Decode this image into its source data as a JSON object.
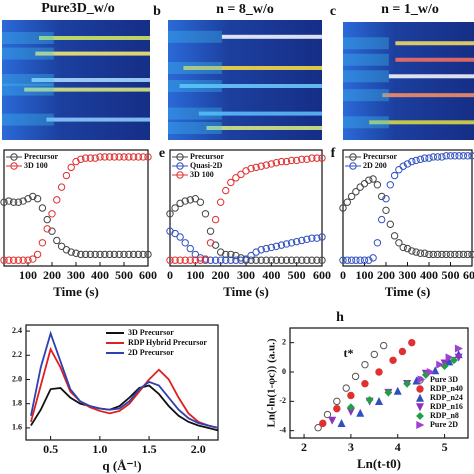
{
  "chart_data": [
    {
      "type": "image",
      "title": "Pure3D_w/o"
    },
    {
      "type": "image",
      "title": "n = 8_w/o",
      "panel_label": "b"
    },
    {
      "type": "image",
      "title": "n = 1_w/o",
      "panel_label": "c"
    },
    {
      "type": "scatter",
      "x_label": "Time (s)",
      "xlim": [
        0,
        600
      ],
      "xticks": [
        100,
        200,
        300,
        400,
        500,
        600
      ],
      "ylim": [
        0,
        1
      ],
      "x": [
        0,
        20,
        40,
        60,
        80,
        100,
        120,
        140,
        160,
        180,
        200,
        220,
        240,
        260,
        280,
        300,
        320,
        340,
        360,
        380,
        400,
        420,
        440,
        460,
        480,
        500,
        520,
        540,
        560,
        580,
        600
      ],
      "series": [
        {
          "name": "Precursor",
          "color": "#444444",
          "values": [
            0.55,
            0.56,
            0.55,
            0.55,
            0.56,
            0.58,
            0.6,
            0.58,
            0.5,
            0.4,
            0.3,
            0.22,
            0.17,
            0.14,
            0.12,
            0.11,
            0.1,
            0.1,
            0.1,
            0.1,
            0.1,
            0.1,
            0.1,
            0.1,
            0.1,
            0.1,
            0.1,
            0.1,
            0.1,
            0.1,
            0.1
          ]
        },
        {
          "name": "3D 100",
          "color": "#e03030",
          "values": [
            0.05,
            0.05,
            0.05,
            0.05,
            0.05,
            0.05,
            0.06,
            0.1,
            0.2,
            0.32,
            0.45,
            0.57,
            0.68,
            0.78,
            0.85,
            0.9,
            0.92,
            0.93,
            0.93,
            0.93,
            0.94,
            0.94,
            0.94,
            0.94,
            0.94,
            0.94,
            0.94,
            0.94,
            0.94,
            0.94,
            0.94
          ]
        }
      ]
    },
    {
      "type": "scatter",
      "panel_label": "e",
      "x_label": "Time (s)",
      "xlim": [
        0,
        600
      ],
      "xticks": [
        0,
        100,
        200,
        300,
        400,
        500,
        600
      ],
      "ylim": [
        0,
        1
      ],
      "x": [
        0,
        20,
        40,
        60,
        80,
        100,
        120,
        140,
        160,
        180,
        200,
        220,
        240,
        260,
        280,
        300,
        320,
        340,
        360,
        380,
        400,
        420,
        440,
        460,
        480,
        500,
        520,
        540,
        560,
        580,
        600
      ],
      "series": [
        {
          "name": "Precursor",
          "color": "#444444",
          "values": [
            0.45,
            0.5,
            0.54,
            0.56,
            0.57,
            0.58,
            0.55,
            0.45,
            0.3,
            0.18,
            0.12,
            0.1,
            0.1,
            0.09,
            0.07,
            0.05,
            0.05,
            0.05,
            0.05,
            0.05,
            0.05,
            0.05,
            0.05,
            0.05,
            0.05,
            0.05,
            0.05,
            0.05,
            0.05,
            0.05,
            0.05
          ]
        },
        {
          "name": "Quasi-2D",
          "color": "#3050c0",
          "values": [
            0.3,
            0.28,
            0.25,
            0.2,
            0.15,
            0.1,
            0.07,
            0.05,
            0.05,
            0.05,
            0.05,
            0.05,
            0.05,
            0.05,
            0.05,
            0.06,
            0.09,
            0.12,
            0.14,
            0.15,
            0.16,
            0.17,
            0.18,
            0.19,
            0.2,
            0.21,
            0.22,
            0.23,
            0.24,
            0.24,
            0.25
          ]
        },
        {
          "name": "3D 100",
          "color": "#e03030",
          "values": [
            0.05,
            0.05,
            0.05,
            0.05,
            0.05,
            0.05,
            0.05,
            0.06,
            0.2,
            0.4,
            0.55,
            0.65,
            0.72,
            0.76,
            0.79,
            0.82,
            0.84,
            0.85,
            0.86,
            0.87,
            0.88,
            0.89,
            0.9,
            0.9,
            0.91,
            0.91,
            0.92,
            0.92,
            0.93,
            0.93,
            0.93
          ]
        }
      ]
    },
    {
      "type": "scatter",
      "panel_label": "f",
      "x_label": "Time (s)",
      "xlim": [
        0,
        600
      ],
      "xticks": [
        0,
        100,
        200,
        300,
        400,
        500,
        600
      ],
      "ylim": [
        0,
        1
      ],
      "x": [
        0,
        20,
        40,
        60,
        80,
        100,
        120,
        140,
        160,
        180,
        200,
        220,
        240,
        260,
        280,
        300,
        320,
        340,
        360,
        380,
        400,
        420,
        440,
        460,
        480,
        500,
        520,
        540,
        560,
        580,
        600
      ],
      "series": [
        {
          "name": "Precursor",
          "color": "#444444",
          "values": [
            0.5,
            0.55,
            0.6,
            0.64,
            0.68,
            0.71,
            0.74,
            0.75,
            0.7,
            0.6,
            0.48,
            0.36,
            0.26,
            0.2,
            0.16,
            0.15,
            0.13,
            0.12,
            0.11,
            0.11,
            0.1,
            0.1,
            0.1,
            0.1,
            0.1,
            0.1,
            0.1,
            0.1,
            0.1,
            0.1,
            0.1
          ]
        },
        {
          "name": "2D 200",
          "color": "#3050c0",
          "values": [
            0.05,
            0.05,
            0.05,
            0.05,
            0.05,
            0.05,
            0.05,
            0.07,
            0.2,
            0.4,
            0.58,
            0.7,
            0.78,
            0.83,
            0.86,
            0.88,
            0.9,
            0.91,
            0.92,
            0.93,
            0.93,
            0.94,
            0.94,
            0.94,
            0.95,
            0.95,
            0.95,
            0.95,
            0.95,
            0.95,
            0.95
          ]
        }
      ]
    },
    {
      "type": "line",
      "x_label": "q (Å⁻¹)",
      "xlim": [
        0.25,
        2.2
      ],
      "xticks": [
        0.5,
        {
          "value": 1.0,
          "label": "1.0"
        },
        1.5,
        {
          "value": 2.0,
          "label": "2.0"
        }
      ],
      "ylim": [
        1.5,
        2.45
      ],
      "yticks": [
        1.6,
        1.8,
        {
          "value": 2.0,
          "label": "2.0"
        },
        2.2,
        2.4
      ],
      "x": [
        0.3,
        0.4,
        0.5,
        0.6,
        0.7,
        0.8,
        0.9,
        1.0,
        1.1,
        1.2,
        1.3,
        1.4,
        1.5,
        1.6,
        1.7,
        1.8,
        1.9,
        2.0,
        2.1,
        2.2
      ],
      "series": [
        {
          "name": "3D Precursor",
          "color": "#111111",
          "values": [
            1.62,
            1.75,
            1.92,
            1.93,
            1.85,
            1.8,
            1.78,
            1.76,
            1.75,
            1.78,
            1.85,
            1.93,
            1.95,
            1.88,
            1.78,
            1.7,
            1.65,
            1.62,
            1.6,
            1.58
          ]
        },
        {
          "name": "RDP Hybrid Precursor",
          "color": "#e02020",
          "values": [
            1.65,
            1.95,
            2.25,
            2.1,
            1.9,
            1.82,
            1.77,
            1.74,
            1.72,
            1.74,
            1.8,
            1.9,
            2.0,
            2.08,
            2.0,
            1.85,
            1.72,
            1.65,
            1.62,
            1.6
          ]
        },
        {
          "name": "2D Precursor",
          "color": "#3040b0",
          "values": [
            1.7,
            2.1,
            2.38,
            2.15,
            1.92,
            1.82,
            1.78,
            1.76,
            1.75,
            1.76,
            1.82,
            1.92,
            1.98,
            1.95,
            1.85,
            1.75,
            1.68,
            1.64,
            1.62,
            1.6
          ]
        }
      ]
    },
    {
      "type": "scatter",
      "panel_label": "h",
      "x_label": "Ln(t-t0)",
      "y_label": "Ln(-ln(1-φc)) (a.u.)",
      "annotation": "t*",
      "xlim": [
        1.7,
        5.5
      ],
      "xticks": [
        2,
        3,
        4,
        5
      ],
      "ylim": [
        -4.5,
        3
      ],
      "yticks": [
        -4,
        -2,
        0,
        2
      ],
      "series": [
        {
          "name": "Pure 3D",
          "color": "#555555",
          "marker": "circle-open",
          "x": [
            2.3,
            2.5,
            2.7,
            2.9,
            3.1,
            3.3,
            3.5,
            3.7
          ],
          "values": [
            -3.8,
            -2.9,
            -2.0,
            -1.1,
            -0.3,
            0.5,
            1.2,
            1.8
          ]
        },
        {
          "name": "RDP_n40",
          "color": "#e03030",
          "marker": "circle",
          "x": [
            2.4,
            2.7,
            3.0,
            3.3,
            3.6,
            3.9,
            4.1,
            4.3
          ],
          "values": [
            -3.5,
            -2.5,
            -1.6,
            -0.8,
            0.0,
            0.8,
            1.4,
            2.0
          ]
        },
        {
          "name": "RDP_n24",
          "color": "#3050c0",
          "marker": "triangle-up",
          "x": [
            2.8,
            3.2,
            3.6,
            4.0,
            4.4,
            4.8,
            5.1,
            5.3
          ],
          "values": [
            -3.5,
            -2.8,
            -2.0,
            -1.3,
            -0.6,
            0.1,
            0.7,
            1.2
          ]
        },
        {
          "name": "RDP_n16",
          "color": "#9030c0",
          "marker": "triangle-down",
          "x": [
            2.6,
            3.0,
            3.4,
            3.8,
            4.2,
            4.6,
            5.0,
            5.3
          ],
          "values": [
            -3.3,
            -2.7,
            -2.0,
            -1.4,
            -0.8,
            -0.1,
            0.6,
            1.0
          ]
        },
        {
          "name": "RDP_n8",
          "color": "#20a040",
          "marker": "diamond",
          "x": [
            3.0,
            3.4,
            3.8,
            4.2,
            4.6,
            5.0,
            5.2
          ],
          "values": [
            -2.4,
            -1.9,
            -1.4,
            -0.8,
            -0.2,
            0.4,
            0.8
          ]
        },
        {
          "name": "Pure 2D",
          "color": "#a040d0",
          "marker": "triangle-right",
          "x": [
            4.5,
            4.7,
            4.9,
            5.1,
            5.3
          ],
          "values": [
            -0.5,
            0.0,
            0.5,
            1.0,
            1.6
          ]
        }
      ]
    }
  ]
}
